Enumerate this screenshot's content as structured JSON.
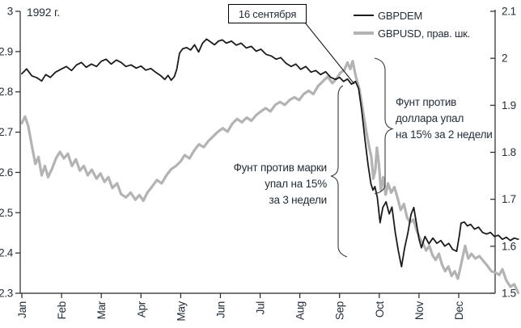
{
  "chart_data": {
    "type": "line",
    "title": "1992 г.",
    "x_axis": {
      "categories": [
        "Jan",
        "Feb",
        "Mar",
        "Apr",
        "May",
        "Jun",
        "Jul",
        "Aug",
        "Sep",
        "Oct",
        "Nov",
        "Dec"
      ],
      "domain_months": [
        0,
        12.5
      ]
    },
    "y_left": {
      "min": 2.3,
      "max": 3.0,
      "tick_labels": [
        "3",
        "2.9",
        "2.8",
        "2.7",
        "2.6",
        "2.5",
        "2.4",
        "2.3"
      ],
      "tick_values": [
        3.0,
        2.9,
        2.8,
        2.7,
        2.6,
        2.5,
        2.4,
        2.3
      ],
      "applies_to": "GBPDEM"
    },
    "y_right": {
      "min": 1.5,
      "max": 2.1,
      "tick_labels": [
        "2.1",
        "2",
        "1.9",
        "1.8",
        "1.7",
        "1.6",
        "1.5"
      ],
      "tick_values": [
        2.1,
        2.0,
        1.9,
        1.8,
        1.7,
        1.6,
        1.5
      ],
      "applies_to": "GBPUSD"
    },
    "grid": false,
    "legend_position": "top-right",
    "series": [
      {
        "name": "GBPDEM",
        "axis": "left",
        "color": "#1b1b1b",
        "stroke_width": 1.8,
        "points": [
          [
            0,
            2.845
          ],
          [
            0.12,
            2.857
          ],
          [
            0.25,
            2.84
          ],
          [
            0.38,
            2.835
          ],
          [
            0.5,
            2.827
          ],
          [
            0.6,
            2.843
          ],
          [
            0.72,
            2.836
          ],
          [
            0.85,
            2.849
          ],
          [
            1.0,
            2.857
          ],
          [
            1.12,
            2.863
          ],
          [
            1.25,
            2.853
          ],
          [
            1.38,
            2.867
          ],
          [
            1.5,
            2.873
          ],
          [
            1.62,
            2.861
          ],
          [
            1.75,
            2.869
          ],
          [
            1.88,
            2.863
          ],
          [
            2.0,
            2.876
          ],
          [
            2.12,
            2.881
          ],
          [
            2.25,
            2.869
          ],
          [
            2.38,
            2.879
          ],
          [
            2.5,
            2.873
          ],
          [
            2.62,
            2.863
          ],
          [
            2.75,
            2.867
          ],
          [
            2.88,
            2.859
          ],
          [
            3.0,
            2.864
          ],
          [
            3.12,
            2.854
          ],
          [
            3.25,
            2.858
          ],
          [
            3.38,
            2.848
          ],
          [
            3.5,
            2.84
          ],
          [
            3.6,
            2.831
          ],
          [
            3.68,
            2.841
          ],
          [
            3.76,
            2.829
          ],
          [
            3.84,
            2.838
          ],
          [
            3.9,
            2.856
          ],
          [
            3.97,
            2.896
          ],
          [
            4.05,
            2.907
          ],
          [
            4.15,
            2.91
          ],
          [
            4.25,
            2.904
          ],
          [
            4.35,
            2.917
          ],
          [
            4.45,
            2.899
          ],
          [
            4.55,
            2.921
          ],
          [
            4.65,
            2.931
          ],
          [
            4.75,
            2.924
          ],
          [
            4.85,
            2.917
          ],
          [
            4.95,
            2.926
          ],
          [
            5.05,
            2.929
          ],
          [
            5.15,
            2.921
          ],
          [
            5.28,
            2.926
          ],
          [
            5.4,
            2.916
          ],
          [
            5.52,
            2.921
          ],
          [
            5.65,
            2.909
          ],
          [
            5.78,
            2.913
          ],
          [
            5.9,
            2.901
          ],
          [
            6.02,
            2.906
          ],
          [
            6.15,
            2.893
          ],
          [
            6.28,
            2.889
          ],
          [
            6.4,
            2.881
          ],
          [
            6.52,
            2.885
          ],
          [
            6.65,
            2.871
          ],
          [
            6.78,
            2.863
          ],
          [
            6.9,
            2.869
          ],
          [
            7.02,
            2.856
          ],
          [
            7.15,
            2.863
          ],
          [
            7.28,
            2.849
          ],
          [
            7.4,
            2.853
          ],
          [
            7.52,
            2.843
          ],
          [
            7.65,
            2.85
          ],
          [
            7.78,
            2.836
          ],
          [
            7.9,
            2.831
          ],
          [
            8.0,
            2.836
          ],
          [
            8.1,
            2.826
          ],
          [
            8.2,
            2.832
          ],
          [
            8.3,
            2.819
          ],
          [
            8.4,
            2.826
          ],
          [
            8.48,
            2.808
          ],
          [
            8.56,
            2.752
          ],
          [
            8.64,
            2.682
          ],
          [
            8.72,
            2.617
          ],
          [
            8.79,
            2.572
          ],
          [
            8.84,
            2.556
          ],
          [
            8.89,
            2.565
          ],
          [
            8.95,
            2.538
          ],
          [
            9.02,
            2.475
          ],
          [
            9.09,
            2.513
          ],
          [
            9.17,
            2.527
          ],
          [
            9.25,
            2.497
          ],
          [
            9.32,
            2.514
          ],
          [
            9.4,
            2.452
          ],
          [
            9.48,
            2.405
          ],
          [
            9.56,
            2.366
          ],
          [
            9.64,
            2.413
          ],
          [
            9.72,
            2.45
          ],
          [
            9.8,
            2.496
          ],
          [
            9.87,
            2.513
          ],
          [
            9.94,
            2.47
          ],
          [
            10.0,
            2.435
          ],
          [
            10.06,
            2.413
          ],
          [
            10.15,
            2.441
          ],
          [
            10.25,
            2.423
          ],
          [
            10.35,
            2.437
          ],
          [
            10.45,
            2.424
          ],
          [
            10.55,
            2.431
          ],
          [
            10.65,
            2.417
          ],
          [
            10.75,
            2.424
          ],
          [
            10.85,
            2.409
          ],
          [
            10.95,
            2.404
          ],
          [
            11.02,
            2.446
          ],
          [
            11.06,
            2.474
          ],
          [
            11.14,
            2.477
          ],
          [
            11.22,
            2.467
          ],
          [
            11.3,
            2.471
          ],
          [
            11.4,
            2.459
          ],
          [
            11.5,
            2.464
          ],
          [
            11.6,
            2.451
          ],
          [
            11.7,
            2.447
          ],
          [
            11.8,
            2.451
          ],
          [
            11.9,
            2.441
          ],
          [
            12.0,
            2.444
          ],
          [
            12.1,
            2.434
          ],
          [
            12.2,
            2.439
          ],
          [
            12.3,
            2.431
          ],
          [
            12.4,
            2.437
          ],
          [
            12.5,
            2.434
          ]
        ]
      },
      {
        "name": "GBPUSD, прав. шк.",
        "axis": "right",
        "color": "#b3b3b3",
        "stroke_width": 3.2,
        "points": [
          [
            0,
            1.862
          ],
          [
            0.08,
            1.876
          ],
          [
            0.16,
            1.856
          ],
          [
            0.26,
            1.81
          ],
          [
            0.34,
            1.775
          ],
          [
            0.42,
            1.79
          ],
          [
            0.5,
            1.751
          ],
          [
            0.58,
            1.771
          ],
          [
            0.66,
            1.747
          ],
          [
            0.76,
            1.765
          ],
          [
            0.86,
            1.787
          ],
          [
            0.96,
            1.801
          ],
          [
            1.06,
            1.787
          ],
          [
            1.16,
            1.797
          ],
          [
            1.26,
            1.771
          ],
          [
            1.36,
            1.785
          ],
          [
            1.46,
            1.761
          ],
          [
            1.56,
            1.771
          ],
          [
            1.66,
            1.751
          ],
          [
            1.76,
            1.763
          ],
          [
            1.88,
            1.744
          ],
          [
            1.98,
            1.755
          ],
          [
            2.08,
            1.737
          ],
          [
            2.18,
            1.747
          ],
          [
            2.28,
            1.724
          ],
          [
            2.4,
            1.734
          ],
          [
            2.5,
            1.711
          ],
          [
            2.62,
            1.704
          ],
          [
            2.74,
            1.714
          ],
          [
            2.86,
            1.699
          ],
          [
            2.96,
            1.709
          ],
          [
            3.06,
            1.697
          ],
          [
            3.16,
            1.714
          ],
          [
            3.28,
            1.727
          ],
          [
            3.4,
            1.741
          ],
          [
            3.52,
            1.734
          ],
          [
            3.64,
            1.751
          ],
          [
            3.76,
            1.764
          ],
          [
            3.88,
            1.771
          ],
          [
            4.0,
            1.781
          ],
          [
            4.1,
            1.794
          ],
          [
            4.22,
            1.787
          ],
          [
            4.34,
            1.804
          ],
          [
            4.46,
            1.817
          ],
          [
            4.58,
            1.811
          ],
          [
            4.7,
            1.824
          ],
          [
            4.82,
            1.834
          ],
          [
            4.94,
            1.844
          ],
          [
            5.06,
            1.851
          ],
          [
            5.18,
            1.844
          ],
          [
            5.3,
            1.861
          ],
          [
            5.42,
            1.871
          ],
          [
            5.54,
            1.864
          ],
          [
            5.66,
            1.874
          ],
          [
            5.78,
            1.867
          ],
          [
            5.9,
            1.879
          ],
          [
            6.02,
            1.887
          ],
          [
            6.14,
            1.894
          ],
          [
            6.26,
            1.887
          ],
          [
            6.38,
            1.901
          ],
          [
            6.5,
            1.907
          ],
          [
            6.62,
            1.901
          ],
          [
            6.74,
            1.911
          ],
          [
            6.86,
            1.917
          ],
          [
            6.98,
            1.911
          ],
          [
            7.1,
            1.924
          ],
          [
            7.22,
            1.931
          ],
          [
            7.34,
            1.924
          ],
          [
            7.46,
            1.941
          ],
          [
            7.58,
            1.951
          ],
          [
            7.7,
            1.961
          ],
          [
            7.82,
            1.947
          ],
          [
            7.92,
            1.957
          ],
          [
            8.02,
            1.969
          ],
          [
            8.12,
            1.975
          ],
          [
            8.2,
            1.991
          ],
          [
            8.27,
            1.977
          ],
          [
            8.33,
            1.994
          ],
          [
            8.41,
            1.961
          ],
          [
            8.5,
            1.934
          ],
          [
            8.58,
            1.893
          ],
          [
            8.66,
            1.851
          ],
          [
            8.74,
            1.813
          ],
          [
            8.8,
            1.79
          ],
          [
            8.85,
            1.744
          ],
          [
            8.9,
            1.762
          ],
          [
            8.94,
            1.81
          ],
          [
            8.99,
            1.776
          ],
          [
            9.04,
            1.72
          ],
          [
            9.1,
            1.747
          ],
          [
            9.16,
            1.71
          ],
          [
            9.22,
            1.734
          ],
          [
            9.3,
            1.714
          ],
          [
            9.38,
            1.726
          ],
          [
            9.46,
            1.703
          ],
          [
            9.54,
            1.677
          ],
          [
            9.62,
            1.69
          ],
          [
            9.7,
            1.661
          ],
          [
            9.78,
            1.651
          ],
          [
            9.86,
            1.657
          ],
          [
            9.94,
            1.634
          ],
          [
            10.02,
            1.617
          ],
          [
            10.1,
            1.606
          ],
          [
            10.18,
            1.591
          ],
          [
            10.26,
            1.601
          ],
          [
            10.34,
            1.581
          ],
          [
            10.42,
            1.571
          ],
          [
            10.5,
            1.584
          ],
          [
            10.58,
            1.561
          ],
          [
            10.66,
            1.547
          ],
          [
            10.74,
            1.557
          ],
          [
            10.82,
            1.537
          ],
          [
            10.9,
            1.547
          ],
          [
            10.98,
            1.531
          ],
          [
            11.04,
            1.554
          ],
          [
            11.1,
            1.577
          ],
          [
            11.16,
            1.601
          ],
          [
            11.24,
            1.574
          ],
          [
            11.32,
            1.584
          ],
          [
            11.42,
            1.574
          ],
          [
            11.52,
            1.579
          ],
          [
            11.62,
            1.569
          ],
          [
            11.72,
            1.559
          ],
          [
            11.82,
            1.547
          ],
          [
            11.92,
            1.544
          ],
          [
            12.02,
            1.539
          ],
          [
            12.1,
            1.551
          ],
          [
            12.2,
            1.527
          ],
          [
            12.3,
            1.514
          ],
          [
            12.4,
            1.519
          ],
          [
            12.5,
            1.501
          ]
        ]
      }
    ],
    "annotations": {
      "event_box": {
        "label": "16 сентября",
        "event_month": 8.5
      },
      "mark_drop": {
        "lines": [
          "Фунт против марки",
          "упал на 15%",
          "за 3 недели"
        ]
      },
      "dollar_drop": {
        "lines": [
          "Фунт против",
          "доллара упал",
          "на 15% за 2 недели"
        ]
      }
    }
  },
  "colors": {
    "gbpdem_line": "#1b1b1b",
    "gbpusd_line": "#b3b3b3",
    "axis": "#262626",
    "text": "#232e3a"
  }
}
